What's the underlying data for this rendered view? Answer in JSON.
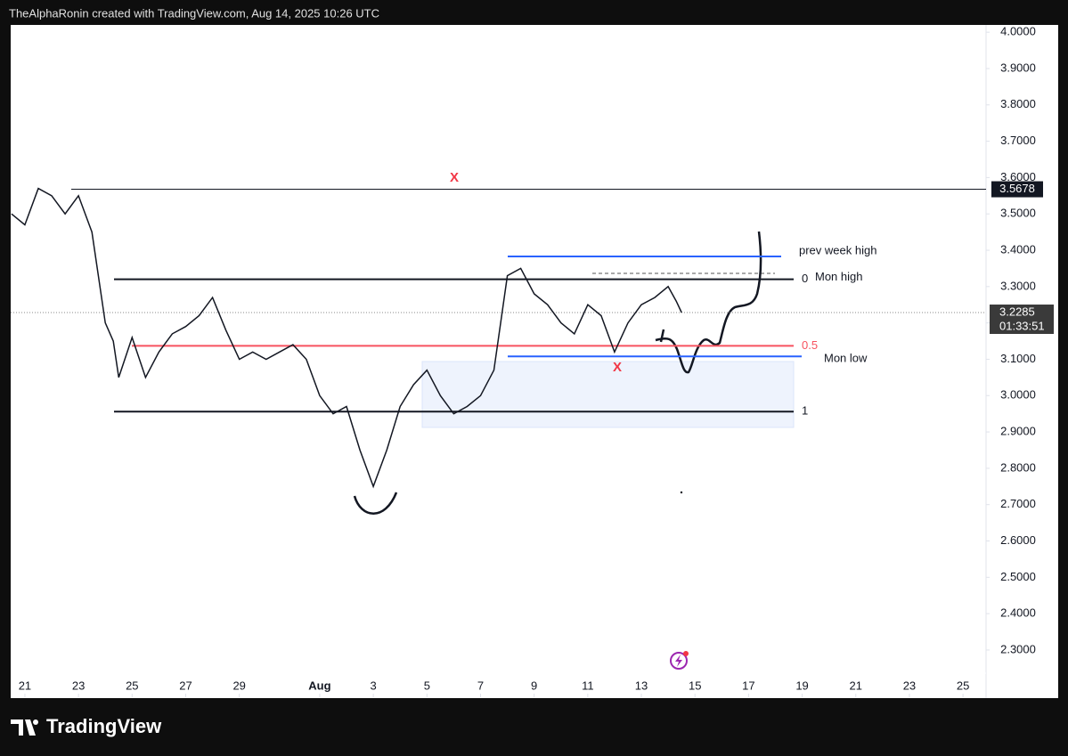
{
  "header": "TheAlphaRonin created with TradingView.com, Aug 14, 2025 10:26 UTC",
  "footer": "TradingView",
  "chart_data": {
    "type": "line",
    "x": [
      20.5,
      21,
      21.5,
      22,
      22.5,
      23,
      23.5,
      24,
      24.3,
      24.5,
      25,
      25.5,
      26,
      26.5,
      27,
      27.5,
      28,
      28.5,
      29,
      29.5,
      30,
      30.5,
      31,
      31.5,
      32,
      32.5,
      33,
      33.5,
      34,
      34.5,
      35,
      35.5,
      36,
      36.5,
      37,
      37.5,
      38,
      38.5,
      39,
      39.5,
      40,
      40.5,
      41,
      41.5,
      42,
      42.5,
      43,
      43.5,
      44,
      44.5,
      45,
      45.3,
      45.5
    ],
    "values": [
      3.5,
      3.47,
      3.57,
      3.55,
      3.5,
      3.55,
      3.45,
      3.2,
      3.15,
      3.05,
      3.16,
      3.05,
      3.12,
      3.17,
      3.19,
      3.22,
      3.27,
      3.18,
      3.1,
      3.12,
      3.1,
      3.12,
      3.14,
      3.1,
      3.0,
      2.95,
      2.97,
      2.85,
      2.75,
      2.85,
      2.97,
      3.03,
      3.07,
      3.0,
      2.95,
      2.97,
      3.0,
      3.07,
      3.33,
      3.35,
      3.28,
      3.25,
      3.2,
      3.17,
      3.25,
      3.22,
      3.12,
      3.2,
      3.25,
      3.27,
      3.3,
      3.26,
      3.2285
    ],
    "color": "#131722",
    "xlim": [
      20.47,
      56.86
    ],
    "xticks": [
      21,
      23,
      25,
      27,
      29,
      {
        "value": 32,
        "label": "Aug"
      },
      {
        "value": 34,
        "label": "3"
      },
      {
        "value": 36,
        "label": "5"
      },
      {
        "value": 38,
        "label": "7"
      },
      {
        "value": 40,
        "label": "9"
      },
      {
        "value": 42,
        "label": "11"
      },
      {
        "value": 44,
        "label": "13"
      },
      {
        "value": 46,
        "label": "15"
      },
      {
        "value": 48,
        "label": "17"
      },
      {
        "value": 50,
        "label": "19"
      },
      {
        "value": 52,
        "label": "21"
      },
      {
        "value": 54,
        "label": "23"
      },
      {
        "value": 56,
        "label": "25"
      }
    ],
    "ylim": [
      2.17,
      4.02
    ],
    "yticks": [
      {
        "value": 2.3,
        "label": "2.3000"
      },
      {
        "value": 2.4,
        "label": "2.4000"
      },
      {
        "value": 2.5,
        "label": "2.5000"
      },
      {
        "value": 2.6,
        "label": "2.6000"
      },
      {
        "value": 2.7,
        "label": "2.7000"
      },
      {
        "value": 2.8,
        "label": "2.8000"
      },
      {
        "value": 2.9,
        "label": "2.9000"
      },
      {
        "value": 3.0,
        "label": "3.0000"
      },
      {
        "value": 3.1,
        "label": "3.1000"
      },
      {
        "value": 3.2,
        "label": "3.2000"
      },
      {
        "value": 3.3,
        "label": "3.3000"
      },
      {
        "value": 3.4,
        "label": "3.4000"
      },
      {
        "value": 3.5,
        "label": "3.5000"
      },
      {
        "value": 3.6,
        "label": "3.6000"
      },
      {
        "value": 3.7,
        "label": "3.7000"
      },
      {
        "value": 3.8,
        "label": "3.8000"
      },
      {
        "value": 3.9,
        "label": "3.9000"
      },
      {
        "value": 4.0,
        "label": "4.0000"
      }
    ],
    "key_level": 3.5678,
    "last_price": 3.2285,
    "countdown": "01:33:51",
    "levels": [
      {
        "label": "prev week high",
        "value": 3.383,
        "color": "#2962ff"
      },
      {
        "label": "Mon low",
        "value": 3.108,
        "color": "#2962ff"
      }
    ],
    "fib": [
      {
        "label": "0",
        "value": 3.32,
        "color": "#131722",
        "text": "Mon high"
      },
      {
        "label": "0.5",
        "value": 3.137,
        "color": "#f7525f"
      },
      {
        "label": "1",
        "value": 2.956,
        "color": "#131722"
      }
    ],
    "markers": [
      "X",
      "X"
    ]
  }
}
